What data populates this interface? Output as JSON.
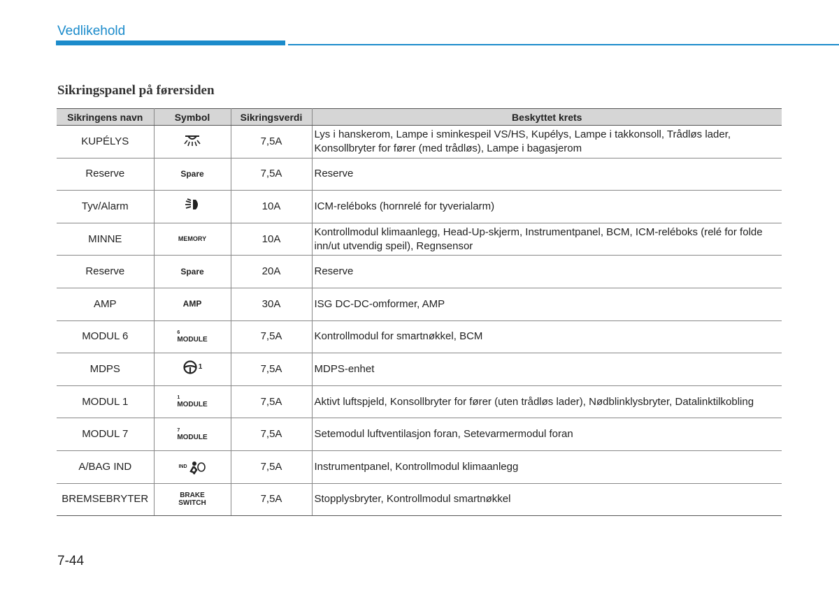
{
  "header": {
    "section": "Vedlikehold"
  },
  "title": "Sikringspanel på førersiden",
  "table": {
    "headers": [
      "Sikringens navn",
      "Symbol",
      "Sikringsverdi",
      "Beskyttet krets"
    ],
    "rows": [
      {
        "name": "KUPÉLYS",
        "rating": "7,5A",
        "circuit": "Lys i hanskerom, Lampe i sminkespeil VS/HS, Kupélys, Lampe i takkonsoll, Trådløs lader, Konsollbryter for fører (med trådløs), Lampe i bagasjerom"
      },
      {
        "name": "Reserve",
        "symbol": [
          "Spare"
        ],
        "rating": "7,5A",
        "circuit": "Reserve"
      },
      {
        "name": "Tyv/Alarm",
        "rating": "10A",
        "circuit": "ICM-reléboks (hornrelé for tyverialarm)"
      },
      {
        "name": "MINNE",
        "symbol": [
          "MEMORY"
        ],
        "rating": "10A",
        "circuit": "Kontrollmodul klimaanlegg, Head-Up-skjerm, Instrumentpanel, BCM, ICM-reléboks (relé for folde inn/ut utvendig speil), Regnsensor"
      },
      {
        "name": "Reserve",
        "symbol": [
          "Spare"
        ],
        "rating": "20A",
        "circuit": "Reserve"
      },
      {
        "name": "AMP",
        "symbol": [
          "AMP"
        ],
        "rating": "30A",
        "circuit": "ISG DC-DC-omformer, AMP"
      },
      {
        "name": "MODUL  6",
        "symbol": [
          "6",
          "MODULE"
        ],
        "rating": "7,5A",
        "circuit": "Kontrollmodul for smartnøkkel, BCM"
      },
      {
        "name": "MDPS",
        "symbol": [
          "1"
        ],
        "rating": "7,5A",
        "circuit": "MDPS-enhet"
      },
      {
        "name": "MODUL  1",
        "symbol": [
          "1",
          "MODULE"
        ],
        "rating": "7,5A",
        "circuit": "Aktivt luftspjeld, Konsollbryter for fører (uten trådløs lader), Nødblinklysbryter, Datalinktilkobling"
      },
      {
        "name": "MODUL  7",
        "symbol": [
          "7",
          "MODULE"
        ],
        "rating": "7,5A",
        "circuit": "Setemodul luftventilasjon foran, Setevarmermodul foran"
      },
      {
        "name": "A/BAG IND",
        "symbol": [
          "IND"
        ],
        "rating": "7,5A",
        "circuit": "Instrumentpanel, Kontrollmodul klimaanlegg"
      },
      {
        "name": "BREMSEBRYTER",
        "symbol": [
          "BRAKE",
          "SWITCH"
        ],
        "rating": "7,5A",
        "circuit": "Stopplysbryter, Kontrollmodul smartnøkkel"
      }
    ]
  },
  "footer": {
    "page": "7-44"
  }
}
